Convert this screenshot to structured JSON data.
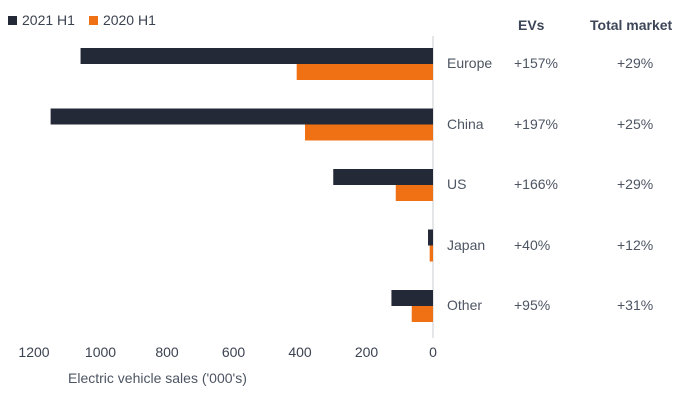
{
  "legend": [
    {
      "label": "2021 H1",
      "color": "#232936"
    },
    {
      "label": "2020 H1",
      "color": "#f07114"
    }
  ],
  "table_headers": {
    "evs": "EVs",
    "total_market": "Total market"
  },
  "chart_data": {
    "type": "bar",
    "orientation": "horizontal",
    "categories": [
      "Europe",
      "China",
      "US",
      "Japan",
      "Other"
    ],
    "series": [
      {
        "name": "2021 H1",
        "color": "#232936",
        "values": [
          1060,
          1150,
          300,
          15,
          125
        ]
      },
      {
        "name": "2020 H1",
        "color": "#f07114",
        "values": [
          410,
          385,
          112,
          10,
          64
        ]
      }
    ],
    "xlabel": "Electric vehicle sales ('000's)",
    "xticks": [
      1200,
      1000,
      800,
      600,
      400,
      200,
      0
    ],
    "xlim": [
      0,
      1200
    ],
    "x_reversed": true,
    "grid": false,
    "legend_position": "top-left"
  },
  "table": {
    "evs": [
      "+157%",
      "+197%",
      "+166%",
      "+40%",
      "+95%"
    ],
    "total_market": [
      "+29%",
      "+25%",
      "+29%",
      "+12%",
      "+31%"
    ]
  }
}
